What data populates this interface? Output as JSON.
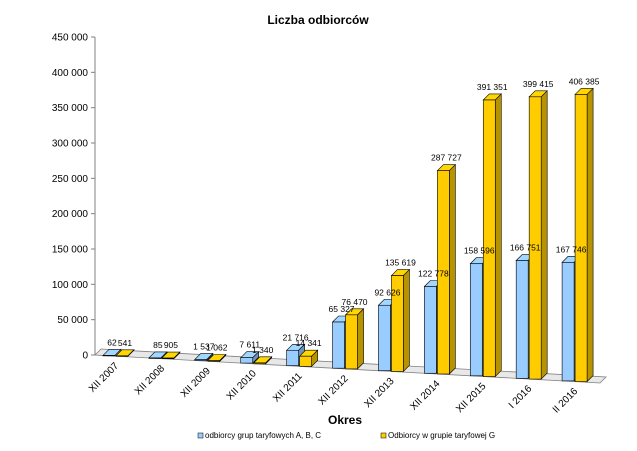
{
  "chart_data": {
    "type": "bar",
    "title": "Liczba odbiorców",
    "xlabel": "Okres",
    "ylabel": "",
    "ylim": [
      0,
      450000
    ],
    "y_ticks": [
      "0",
      "50 000",
      "100 000",
      "150 000",
      "200 000",
      "250 000",
      "300 000",
      "350 000",
      "400 000",
      "450 000"
    ],
    "y_tick_values": [
      0,
      50000,
      100000,
      150000,
      200000,
      250000,
      300000,
      350000,
      400000,
      450000
    ],
    "categories": [
      "XII 2007",
      "XII 2008",
      "XII 2009",
      "XII 2010",
      "XII 2011",
      "XII 2012",
      "XII 2013",
      "XII 2014",
      "XII 2015",
      "I 2016",
      "II 2016"
    ],
    "series": [
      {
        "name": "odbiorcy grup taryfowych A, B, C",
        "color": "#99ccff",
        "values": [
          62,
          85,
          1537,
          7611,
          21716,
          65327,
          92626,
          122778,
          158596,
          166751,
          167746
        ],
        "labels": [
          "62",
          "85",
          "1 537",
          "7 611",
          "21 716",
          "65 327",
          "92 626",
          "122 778",
          "158 596",
          "166 751",
          "167 746"
        ]
      },
      {
        "name": "Odbiorcy w grupie taryfowej G",
        "color": "#ffcc00",
        "values": [
          541,
          905,
          1062,
          1340,
          14341,
          76470,
          135619,
          287727,
          391351,
          399415,
          406385
        ],
        "labels": [
          "541",
          "905",
          "1 062",
          "1 340",
          "14 341",
          "76 470",
          "135 619",
          "287 727",
          "391 351",
          "399 415",
          "406 385"
        ]
      }
    ],
    "grid": false,
    "legend_position": "bottom"
  }
}
